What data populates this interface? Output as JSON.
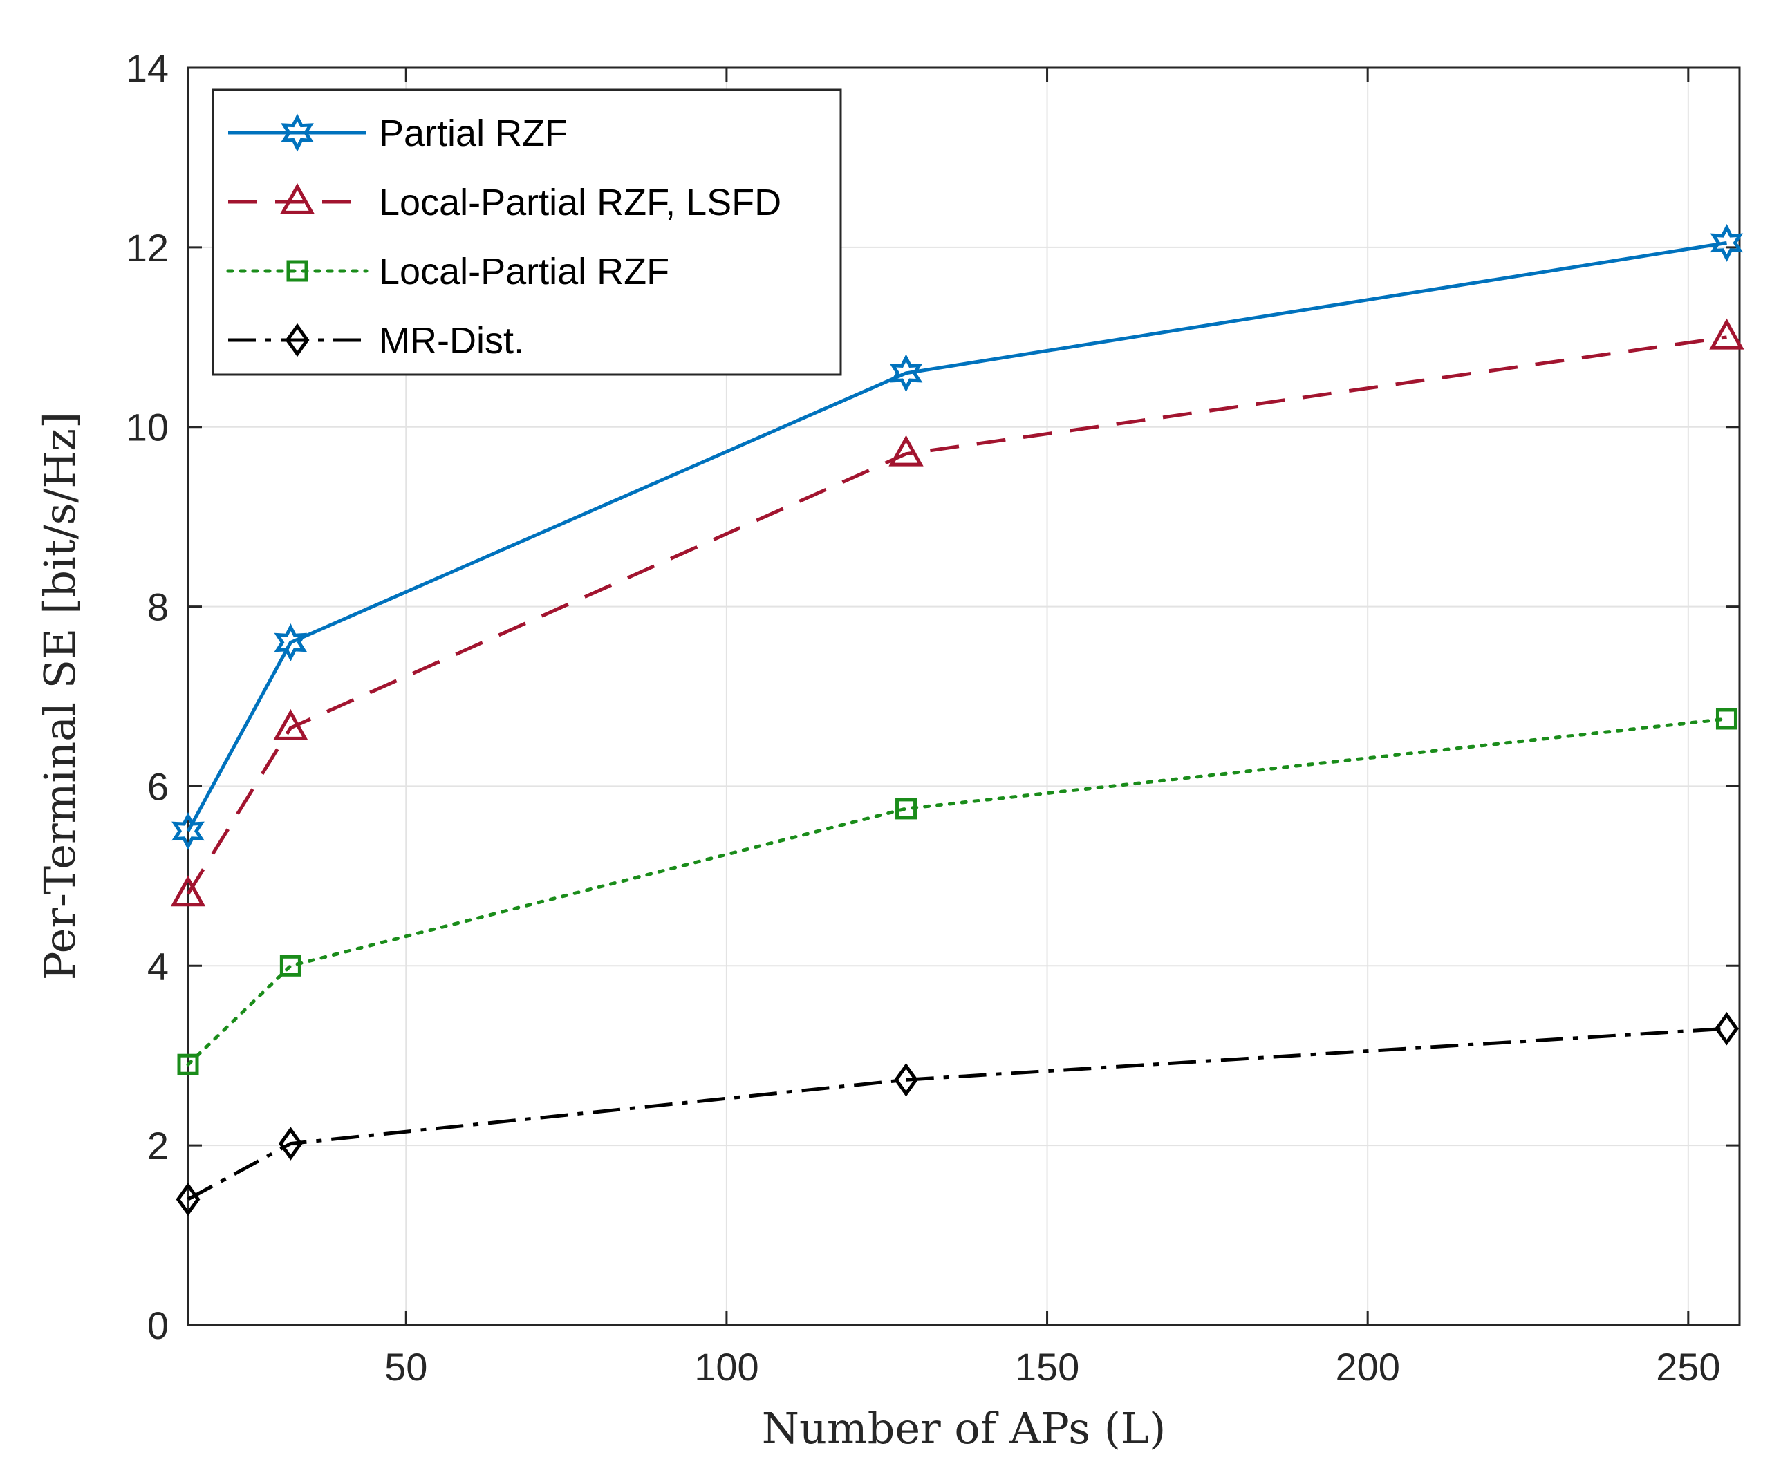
{
  "chart_data": {
    "type": "line",
    "title": "",
    "xlabel": "Number of APs (L)",
    "ylabel": "Per-Terminal SE [bit/s/Hz]",
    "xlim": [
      16,
      258
    ],
    "ylim": [
      0,
      14
    ],
    "xticks": [
      50,
      100,
      150,
      200,
      250
    ],
    "yticks": [
      0,
      2,
      4,
      6,
      8,
      10,
      12,
      14
    ],
    "grid": true,
    "legend_position": "top-left",
    "x": [
      16,
      32,
      128,
      256
    ],
    "series": [
      {
        "name": "Partial RZF",
        "values": [
          5.5,
          7.6,
          10.6,
          12.05
        ],
        "color": "#0072BD",
        "marker": "hexagram",
        "dash": "solid"
      },
      {
        "name": "Local-Partial RZF, LSFD",
        "values": [
          4.8,
          6.65,
          9.7,
          11.0
        ],
        "color": "#A2142F",
        "marker": "triangle",
        "dash": "dashed"
      },
      {
        "name": "Local-Partial RZF",
        "values": [
          2.9,
          4.0,
          5.75,
          6.75
        ],
        "color": "#1A8C1A",
        "marker": "square",
        "dash": "dotted"
      },
      {
        "name": "MR-Dist.",
        "values": [
          1.4,
          2.02,
          2.73,
          3.3
        ],
        "color": "#000000",
        "marker": "diamond",
        "dash": "dashdot"
      }
    ]
  }
}
